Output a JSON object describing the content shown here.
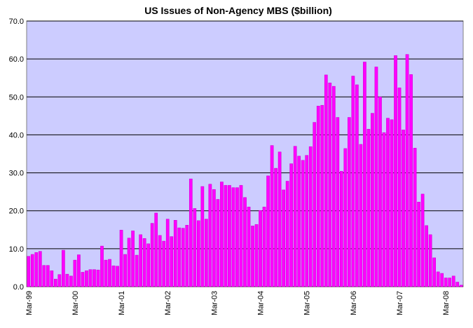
{
  "chart_data": {
    "type": "bar",
    "title": "US Issues of Non-Agency MBS ($billion)",
    "categories": [
      "Mar-99",
      null,
      null,
      null,
      null,
      null,
      null,
      null,
      null,
      null,
      null,
      null,
      "Mar-00",
      null,
      null,
      null,
      null,
      null,
      null,
      null,
      null,
      null,
      null,
      null,
      "Mar-01",
      null,
      null,
      null,
      null,
      null,
      null,
      null,
      null,
      null,
      null,
      null,
      "Mar-02",
      null,
      null,
      null,
      null,
      null,
      null,
      null,
      null,
      null,
      null,
      null,
      "Mar-03",
      null,
      null,
      null,
      null,
      null,
      null,
      null,
      null,
      null,
      null,
      null,
      "Mar-04",
      null,
      null,
      null,
      null,
      null,
      null,
      null,
      null,
      null,
      null,
      null,
      "Mar-05",
      null,
      null,
      null,
      null,
      null,
      null,
      null,
      null,
      null,
      null,
      null,
      "Mar-06",
      null,
      null,
      null,
      null,
      null,
      null,
      null,
      null,
      null,
      null,
      null,
      "Mar-07",
      null,
      null,
      null,
      null,
      null,
      null,
      null,
      null,
      null,
      null,
      null,
      "Mar-08",
      null,
      null,
      null,
      null
    ],
    "values": [
      8,
      8.5,
      9,
      9.3,
      5.6,
      5.6,
      4.2,
      2,
      3.2,
      9.6,
      3.3,
      2.8,
      7,
      8.4,
      3.8,
      4.2,
      4.5,
      4.5,
      4.4,
      10.7,
      7,
      7.2,
      5.5,
      5.4,
      14.9,
      8.5,
      12.8,
      14.7,
      8.3,
      13.7,
      12.7,
      11.3,
      16.7,
      19.4,
      13.5,
      12,
      17.8,
      13.2,
      17.5,
      15.5,
      15.4,
      16.2,
      28.4,
      20.6,
      17.4,
      26.4,
      17.8,
      27,
      25.6,
      23,
      27.6,
      26.7,
      26.7,
      26.1,
      26.1,
      26.7,
      23.5,
      21,
      16,
      16.4,
      20.1,
      21,
      29.2,
      37.2,
      31.2,
      35.5,
      25.5,
      27.8,
      32.4,
      37,
      34.4,
      33.3,
      34.6,
      36.9,
      43.3,
      47.6,
      47.8,
      55.8,
      53.7,
      52.8,
      44.6,
      30.4,
      36.4,
      44.6,
      55.5,
      53.2,
      37.5,
      59.2,
      41.5,
      45.7,
      57.9,
      50,
      40.6,
      44.4,
      44,
      60.9,
      52.4,
      41.3,
      61.2,
      55.9,
      36.5,
      22.3,
      24.4,
      16.1,
      13.7,
      7.6,
      3.9,
      3.5,
      2.3,
      2.3,
      2.8,
      1.2,
      0.4
    ],
    "color": "#ff00ff",
    "ylim": [
      0,
      70
    ],
    "yticks": [
      {
        "value": 0,
        "label": "0.0"
      },
      {
        "value": 10,
        "label": "10.0"
      },
      {
        "value": 20,
        "label": "20.0"
      },
      {
        "value": 30,
        "label": "30.0"
      },
      {
        "value": 40,
        "label": "40.0"
      },
      {
        "value": 50,
        "label": "50.0"
      },
      {
        "value": 60,
        "label": "60.0"
      },
      {
        "value": 70,
        "label": "70.0"
      }
    ],
    "grid": true
  }
}
